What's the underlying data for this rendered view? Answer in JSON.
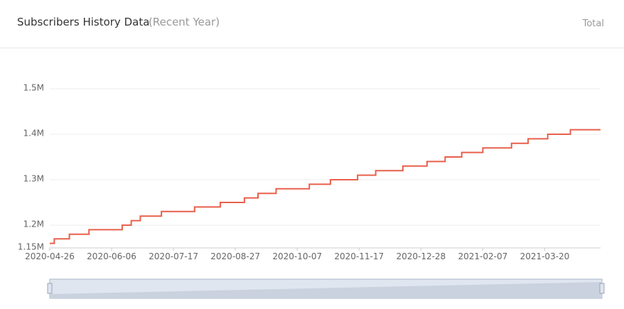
{
  "header": {
    "title": "Subscribers History Data",
    "subtitle": "(Recent Year)",
    "link": "Total"
  },
  "chart_data": {
    "type": "line",
    "step": "end",
    "color": "#e8604c",
    "grid": true,
    "x": [
      "2020-04-26",
      "2020-04-29",
      "2020-05-09",
      "2020-05-22",
      "2020-06-13",
      "2020-06-19",
      "2020-06-25",
      "2020-07-09",
      "2020-07-31",
      "2020-08-17",
      "2020-09-02",
      "2020-09-11",
      "2020-09-23",
      "2020-10-15",
      "2020-10-29",
      "2020-11-16",
      "2020-11-28",
      "2020-12-16",
      "2021-01-01",
      "2021-01-13",
      "2021-01-24",
      "2021-02-07",
      "2021-02-26",
      "2021-03-09",
      "2021-03-22",
      "2021-04-06",
      "2021-04-26"
    ],
    "values": [
      1160000,
      1170000,
      1180000,
      1190000,
      1200000,
      1210000,
      1220000,
      1230000,
      1240000,
      1250000,
      1260000,
      1270000,
      1280000,
      1290000,
      1300000,
      1310000,
      1320000,
      1330000,
      1340000,
      1350000,
      1360000,
      1370000,
      1380000,
      1390000,
      1400000,
      1410000,
      1410000
    ],
    "xlim": [
      "2020-04-26",
      "2021-04-26"
    ],
    "xticks": [
      "2020-04-26",
      "2020-06-06",
      "2020-07-17",
      "2020-08-27",
      "2020-10-07",
      "2020-11-17",
      "2020-12-28",
      "2021-02-07",
      "2021-03-20"
    ],
    "ylim": [
      1150000,
      1500000
    ],
    "yticks": [
      {
        "value": 1150000,
        "label": "1.15M"
      },
      {
        "value": 1200000,
        "label": "1.2M"
      },
      {
        "value": 1300000,
        "label": "1.3M"
      },
      {
        "value": 1400000,
        "label": "1.4M"
      },
      {
        "value": 1500000,
        "label": "1.5M"
      }
    ]
  }
}
